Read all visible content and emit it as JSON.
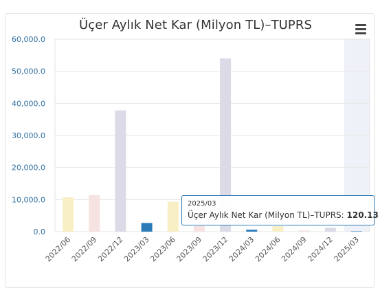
{
  "chart_data": {
    "type": "bar",
    "title": "Üçer Aylık Net Kar (Milyon TL)–TUPRS",
    "categories": [
      "2022/06",
      "2022/09",
      "2022/12",
      "2023/03",
      "2023/06",
      "2023/09",
      "2023/12",
      "2024/03",
      "2024/06",
      "2024/09",
      "2024/12",
      "2025/03"
    ],
    "values": [
      10700,
      11400,
      37800,
      2700,
      9300,
      1800,
      54000,
      600,
      1700,
      400,
      1200,
      120.13
    ],
    "bar_colors": [
      "#f8efc4",
      "#f6e3e1",
      "#dcdae6",
      "#2b7bb9",
      "#f8efc4",
      "#f6e3e1",
      "#dcdae6",
      "#2b7bb9",
      "#f8efc4",
      "#f6e3e1",
      "#dcdae6",
      "#2b7bb9"
    ],
    "y_ticks": [
      "60,000.0",
      "50,000.0",
      "40,000.0",
      "30,000.0",
      "20,000.0",
      "10,000.0",
      "0.0"
    ],
    "y_tick_values": [
      60000,
      50000,
      40000,
      30000,
      20000,
      10000,
      0
    ],
    "ylim": [
      0,
      60000
    ],
    "xlabel": "",
    "ylabel": "",
    "highlighted_category": "2025/03",
    "grid": true,
    "colors": {
      "grid": "#e6e6e6",
      "axis_label": "#2f6f9f",
      "highlight_band": "#eef1f7",
      "tooltip_border": "#2b7bb9"
    }
  },
  "tooltip": {
    "date": "2025/03",
    "series_label": "Üçer Aylık Net Kar (Milyon TL)–TUPRS:",
    "value": "120.13"
  },
  "menu": {
    "icon": "hamburger-menu-icon"
  }
}
